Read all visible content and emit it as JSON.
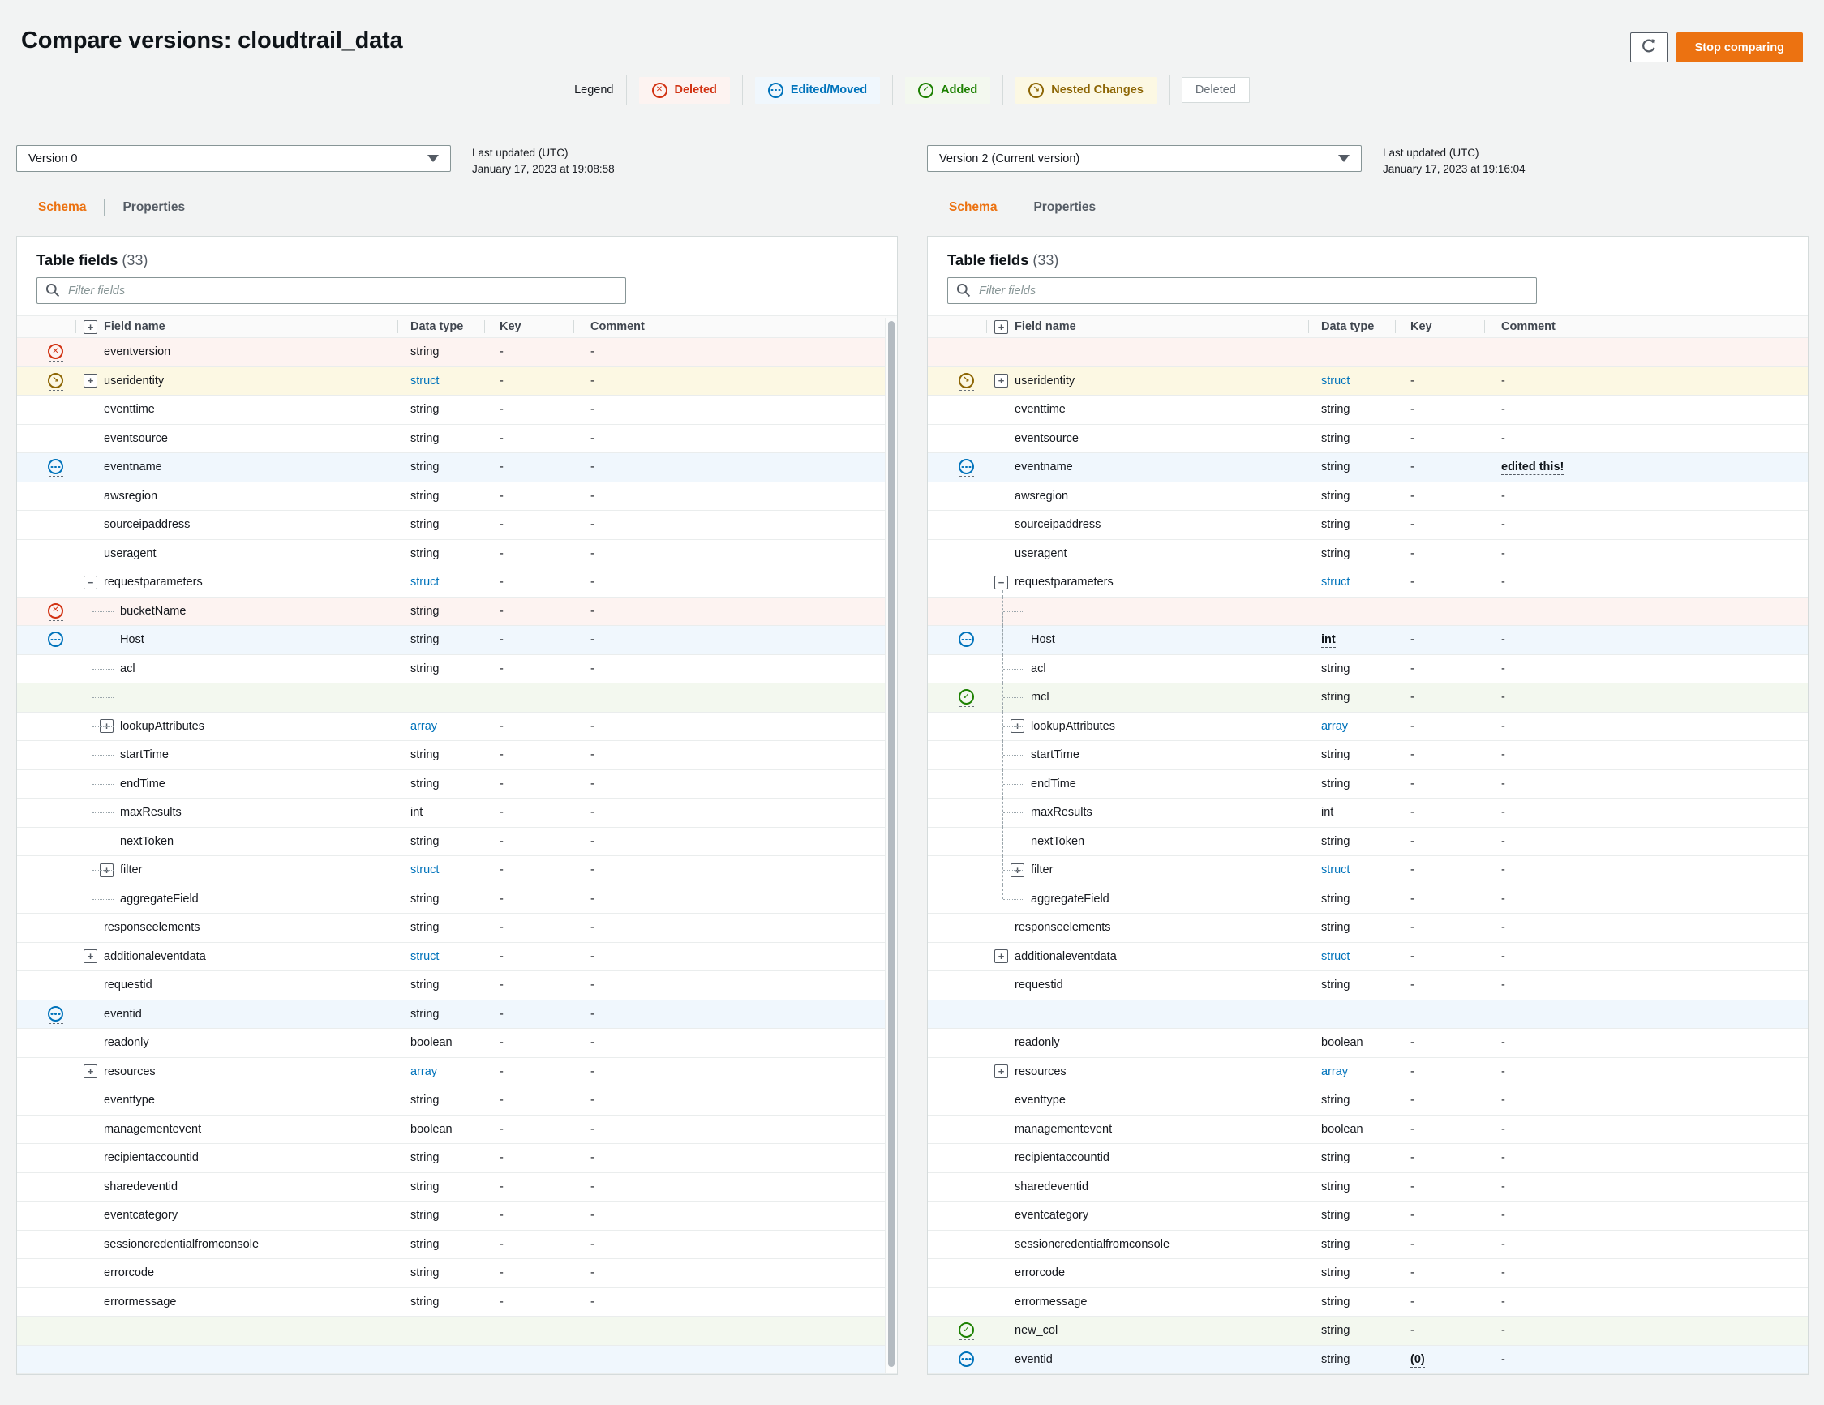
{
  "page": {
    "title": "Compare versions: cloudtrail_data",
    "stop_button_label": "Stop comparing"
  },
  "legend": {
    "label": "Legend",
    "items": [
      {
        "label": "Deleted",
        "kind": "deleted"
      },
      {
        "label": "Edited/Moved",
        "kind": "edited"
      },
      {
        "label": "Added",
        "kind": "added"
      },
      {
        "label": "Nested Changes",
        "kind": "nested"
      },
      {
        "label": "Deleted",
        "kind": "plain"
      }
    ]
  },
  "colors": {
    "accent": "#ec7211",
    "deleted": "#d13212",
    "edited": "#0073bb",
    "added": "#1d8102",
    "nested": "#8d6605",
    "link": "#0073bb",
    "row_pink": "#fdf3f1",
    "row_blue": "#f0f7fd",
    "row_green": "#f3f8ef",
    "row_yellow": "#fcf8e3"
  },
  "panels": [
    {
      "version": "Version 0",
      "last_updated_label": "Last updated (UTC)",
      "last_updated": "January 17, 2023 at 19:08:58",
      "tabs": [
        "Schema",
        "Properties"
      ],
      "active_tab": "Schema",
      "table_title": "Table fields",
      "count": "(33)",
      "filter_placeholder": "Filter fields",
      "columns": [
        "Field name",
        "Data type",
        "Key",
        "Comment"
      ],
      "scrollbar": true,
      "rows": [
        {
          "status": "deleted",
          "bg": "pink",
          "name": "eventversion",
          "type": "string"
        },
        {
          "status": "nested",
          "bg": "yellow",
          "name": "useridentity",
          "type": "struct",
          "type_link": true,
          "toggle": "plus"
        },
        {
          "name": "eventtime",
          "type": "string"
        },
        {
          "name": "eventsource",
          "type": "string"
        },
        {
          "status": "edited",
          "bg": "blue",
          "name": "eventname",
          "type": "string"
        },
        {
          "name": "awsregion",
          "type": "string"
        },
        {
          "name": "sourceipaddress",
          "type": "string"
        },
        {
          "name": "useragent",
          "type": "string"
        },
        {
          "name": "requestparameters",
          "type": "struct",
          "type_link": true,
          "toggle": "minus"
        },
        {
          "status": "deleted",
          "bg": "pink",
          "name": "bucketName",
          "type": "string",
          "level": 1
        },
        {
          "status": "edited",
          "bg": "blue",
          "name": "Host",
          "type": "string",
          "level": 1
        },
        {
          "name": "acl",
          "type": "string",
          "level": 1
        },
        {
          "bg": "green",
          "level": 1,
          "empty": true
        },
        {
          "name": "lookupAttributes",
          "type": "array",
          "type_link": true,
          "toggle": "plus",
          "level": 1
        },
        {
          "name": "startTime",
          "type": "string",
          "level": 1
        },
        {
          "name": "endTime",
          "type": "string",
          "level": 1
        },
        {
          "name": "maxResults",
          "type": "int",
          "level": 1
        },
        {
          "name": "nextToken",
          "type": "string",
          "level": 1
        },
        {
          "name": "filter",
          "type": "struct",
          "type_link": true,
          "toggle": "plus",
          "level": 1
        },
        {
          "name": "aggregateField",
          "type": "string",
          "level": 1,
          "last_child": true
        },
        {
          "name": "responseelements",
          "type": "string"
        },
        {
          "name": "additionaleventdata",
          "type": "struct",
          "type_link": true,
          "toggle": "plus"
        },
        {
          "name": "requestid",
          "type": "string"
        },
        {
          "status": "edited",
          "bg": "blue",
          "name": "eventid",
          "type": "string"
        },
        {
          "name": "readonly",
          "type": "boolean"
        },
        {
          "name": "resources",
          "type": "array",
          "type_link": true,
          "toggle": "plus"
        },
        {
          "name": "eventtype",
          "type": "string"
        },
        {
          "name": "managementevent",
          "type": "boolean"
        },
        {
          "name": "recipientaccountid",
          "type": "string"
        },
        {
          "name": "sharedeventid",
          "type": "string"
        },
        {
          "name": "eventcategory",
          "type": "string"
        },
        {
          "name": "sessioncredentialfromconsole",
          "type": "string"
        },
        {
          "name": "errorcode",
          "type": "string"
        },
        {
          "name": "errormessage",
          "type": "string"
        },
        {
          "bg": "green",
          "empty": true
        },
        {
          "bg": "blue",
          "empty": true
        }
      ]
    },
    {
      "version": "Version 2 (Current version)",
      "last_updated_label": "Last updated (UTC)",
      "last_updated": "January 17, 2023 at 19:16:04",
      "tabs": [
        "Schema",
        "Properties"
      ],
      "active_tab": "Schema",
      "table_title": "Table fields",
      "count": "(33)",
      "filter_placeholder": "Filter fields",
      "columns": [
        "Field name",
        "Data type",
        "Key",
        "Comment"
      ],
      "scrollbar": false,
      "rows": [
        {
          "bg": "pink",
          "empty": true
        },
        {
          "status": "nested",
          "bg": "yellow",
          "name": "useridentity",
          "type": "struct",
          "type_link": true,
          "toggle": "plus"
        },
        {
          "name": "eventtime",
          "type": "string"
        },
        {
          "name": "eventsource",
          "type": "string"
        },
        {
          "status": "edited",
          "bg": "blue",
          "name": "eventname",
          "type": "string",
          "comment": "edited this!",
          "comment_changed": true
        },
        {
          "name": "awsregion",
          "type": "string"
        },
        {
          "name": "sourceipaddress",
          "type": "string"
        },
        {
          "name": "useragent",
          "type": "string"
        },
        {
          "name": "requestparameters",
          "type": "struct",
          "type_link": true,
          "toggle": "minus"
        },
        {
          "bg": "pink",
          "level": 1,
          "empty": true
        },
        {
          "status": "edited",
          "bg": "blue",
          "name": "Host",
          "type": "int",
          "type_changed": true,
          "level": 1
        },
        {
          "name": "acl",
          "type": "string",
          "level": 1
        },
        {
          "status": "added",
          "bg": "green",
          "name": "mcl",
          "type": "string",
          "level": 1
        },
        {
          "name": "lookupAttributes",
          "type": "array",
          "type_link": true,
          "toggle": "plus",
          "level": 1
        },
        {
          "name": "startTime",
          "type": "string",
          "level": 1
        },
        {
          "name": "endTime",
          "type": "string",
          "level": 1
        },
        {
          "name": "maxResults",
          "type": "int",
          "level": 1
        },
        {
          "name": "nextToken",
          "type": "string",
          "level": 1
        },
        {
          "name": "filter",
          "type": "struct",
          "type_link": true,
          "toggle": "plus",
          "level": 1
        },
        {
          "name": "aggregateField",
          "type": "string",
          "level": 1,
          "last_child": true
        },
        {
          "name": "responseelements",
          "type": "string"
        },
        {
          "name": "additionaleventdata",
          "type": "struct",
          "type_link": true,
          "toggle": "plus"
        },
        {
          "name": "requestid",
          "type": "string"
        },
        {
          "bg": "blue",
          "empty": true
        },
        {
          "name": "readonly",
          "type": "boolean"
        },
        {
          "name": "resources",
          "type": "array",
          "type_link": true,
          "toggle": "plus"
        },
        {
          "name": "eventtype",
          "type": "string"
        },
        {
          "name": "managementevent",
          "type": "boolean"
        },
        {
          "name": "recipientaccountid",
          "type": "string"
        },
        {
          "name": "sharedeventid",
          "type": "string"
        },
        {
          "name": "eventcategory",
          "type": "string"
        },
        {
          "name": "sessioncredentialfromconsole",
          "type": "string"
        },
        {
          "name": "errorcode",
          "type": "string"
        },
        {
          "name": "errormessage",
          "type": "string"
        },
        {
          "status": "added",
          "bg": "green",
          "name": "new_col",
          "type": "string"
        },
        {
          "status": "edited",
          "bg": "blue",
          "name": "eventid",
          "type": "string",
          "key": "(0)",
          "key_changed": true
        }
      ]
    }
  ]
}
